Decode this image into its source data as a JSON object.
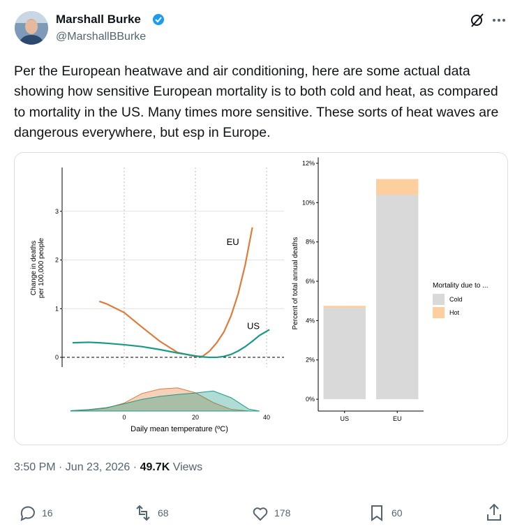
{
  "author": {
    "name": "Marshall Burke",
    "handle": "@MarshallBBurke"
  },
  "text": "Per the European heatwave and air conditioning, here are some actual data showing how sensitive European mortality is to both cold and heat, as compared to mortality in the US.  Many times more sensitive. These sorts of heat waves are dangerous everywhere, but esp in Europe.",
  "meta": {
    "timestamp": "3:50 PM · Jun 23, 2026 ·",
    "views": "49.7K",
    "views_label": "Views"
  },
  "actions": {
    "replies": 16,
    "reposts": 68,
    "likes": 178,
    "bookmarks": 60
  },
  "chart_data": [
    {
      "type": "line",
      "x_label": "Daily mean temperature (ºC)",
      "y_label": [
        "Change in deaths",
        "per 100,000 people"
      ],
      "x": [
        -14.5,
        -10,
        -7,
        -5,
        0,
        5,
        10,
        15,
        20,
        22,
        24,
        26,
        28,
        30,
        32,
        34,
        36,
        38,
        40.8
      ],
      "series": [
        {
          "name": "EU",
          "color": "#e07b39",
          "values": [
            null,
            null,
            1.15,
            1.1,
            0.92,
            0.62,
            0.33,
            0.1,
            0.02,
            0.02,
            0.13,
            0.3,
            0.52,
            0.85,
            1.3,
            1.9,
            2.67,
            null,
            null
          ]
        },
        {
          "name": "US",
          "color": "#1a9a85",
          "values": [
            0.3,
            0.31,
            0.3,
            0.29,
            0.26,
            0.22,
            0.16,
            0.09,
            0.03,
            0.01,
            0.0,
            0.0,
            0.02,
            0.06,
            0.13,
            0.22,
            0.33,
            0.45,
            0.57
          ]
        }
      ],
      "xlim": [
        -17,
        45
      ],
      "xticks": [
        0,
        20,
        40
      ],
      "ylim": [
        -0.2,
        3.9
      ],
      "yticks": [
        0,
        1,
        2,
        3
      ],
      "density": {
        "x": [
          -15,
          -10,
          -5,
          0,
          5,
          10,
          15,
          20,
          25,
          30,
          35,
          38
        ],
        "ylim": [
          0,
          1
        ],
        "series": [
          {
            "color": "#e07b39",
            "values": [
              0,
              0.04,
              0.12,
              0.33,
              0.72,
              0.9,
              0.95,
              0.75,
              0.35,
              0.07,
              0,
              0
            ]
          },
          {
            "color": "#1a9a85",
            "values": [
              0.02,
              0.06,
              0.14,
              0.3,
              0.48,
              0.6,
              0.68,
              0.74,
              0.82,
              0.55,
              0.08,
              0
            ]
          }
        ]
      }
    },
    {
      "type": "bar",
      "stacked": true,
      "y_label": "Percent of total annual deaths",
      "legend_title": "Mortality due to ...",
      "categories": [
        "US",
        "EU"
      ],
      "series": [
        {
          "name": "Cold",
          "color": "#d9d9d9",
          "values": [
            4.65,
            10.4
          ]
        },
        {
          "name": "Hot",
          "color": "#fdcf9e",
          "values": [
            0.1,
            0.8
          ]
        }
      ],
      "ylim": [
        -0.6,
        12.3
      ],
      "yticks": [
        {
          "value": 0,
          "label": "0%"
        },
        {
          "value": 2,
          "label": "2%"
        },
        {
          "value": 4,
          "label": "4%"
        },
        {
          "value": 6,
          "label": "6%"
        },
        {
          "value": 8,
          "label": "8%"
        },
        {
          "value": 10,
          "label": "10%"
        },
        {
          "value": 12,
          "label": "12%"
        }
      ]
    }
  ]
}
